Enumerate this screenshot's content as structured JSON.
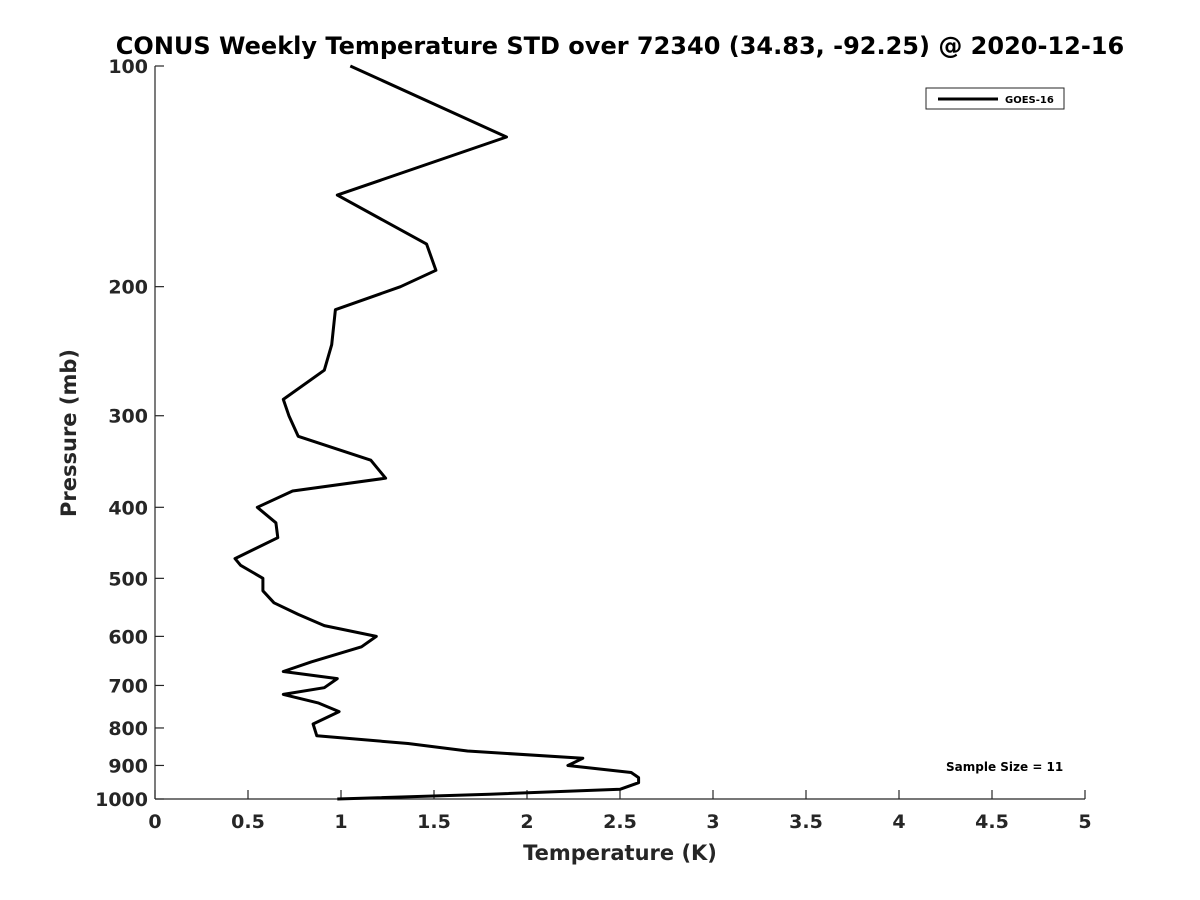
{
  "chart_data": {
    "type": "line",
    "title": "CONUS Weekly Temperature STD over 72340 (34.83, -92.25) @ 2020-12-16",
    "xlabel": "Temperature (K)",
    "ylabel": "Pressure (mb)",
    "xlim": [
      0,
      5
    ],
    "ylim": [
      100,
      1000
    ],
    "y_scale": "log",
    "y_reversed": true,
    "grid": false,
    "legend_position": "top-right",
    "x_ticks": [
      0,
      0.5,
      1,
      1.5,
      2,
      2.5,
      3,
      3.5,
      4,
      4.5,
      5
    ],
    "x_tick_labels": [
      "0",
      "0.5",
      "1",
      "1.5",
      "2",
      "2.5",
      "3",
      "3.5",
      "4",
      "4.5",
      "5"
    ],
    "y_ticks": [
      100,
      200,
      300,
      400,
      500,
      600,
      700,
      800,
      900,
      1000
    ],
    "y_tick_labels": [
      "100",
      "200",
      "300",
      "400",
      "500",
      "600",
      "700",
      "800",
      "900",
      "1000"
    ],
    "series": [
      {
        "name": "GOES-16",
        "color": "#000000",
        "points": [
          [
            1.05,
            100
          ],
          [
            1.89,
            125
          ],
          [
            0.98,
            150
          ],
          [
            1.46,
            175
          ],
          [
            1.51,
            190
          ],
          [
            1.32,
            200
          ],
          [
            0.97,
            215
          ],
          [
            0.95,
            240
          ],
          [
            0.91,
            260
          ],
          [
            0.69,
            285
          ],
          [
            0.72,
            300
          ],
          [
            0.77,
            320
          ],
          [
            1.16,
            345
          ],
          [
            1.24,
            365
          ],
          [
            0.74,
            380
          ],
          [
            0.55,
            400
          ],
          [
            0.65,
            420
          ],
          [
            0.66,
            440
          ],
          [
            0.43,
            470
          ],
          [
            0.46,
            480
          ],
          [
            0.58,
            500
          ],
          [
            0.58,
            520
          ],
          [
            0.64,
            540
          ],
          [
            0.77,
            560
          ],
          [
            0.91,
            580
          ],
          [
            1.19,
            600
          ],
          [
            1.11,
            620
          ],
          [
            0.84,
            650
          ],
          [
            0.69,
            670
          ],
          [
            0.98,
            685
          ],
          [
            0.91,
            705
          ],
          [
            0.69,
            720
          ],
          [
            0.88,
            740
          ],
          [
            0.99,
            760
          ],
          [
            0.85,
            790
          ],
          [
            0.87,
            820
          ],
          [
            1.36,
            840
          ],
          [
            1.68,
            860
          ],
          [
            2.3,
            880
          ],
          [
            2.22,
            900
          ],
          [
            2.56,
            920
          ],
          [
            2.6,
            935
          ],
          [
            2.6,
            950
          ],
          [
            2.5,
            970
          ],
          [
            1.8,
            985
          ],
          [
            0.98,
            1000
          ]
        ]
      }
    ],
    "annotations": [
      "Sample Size = 11"
    ]
  }
}
